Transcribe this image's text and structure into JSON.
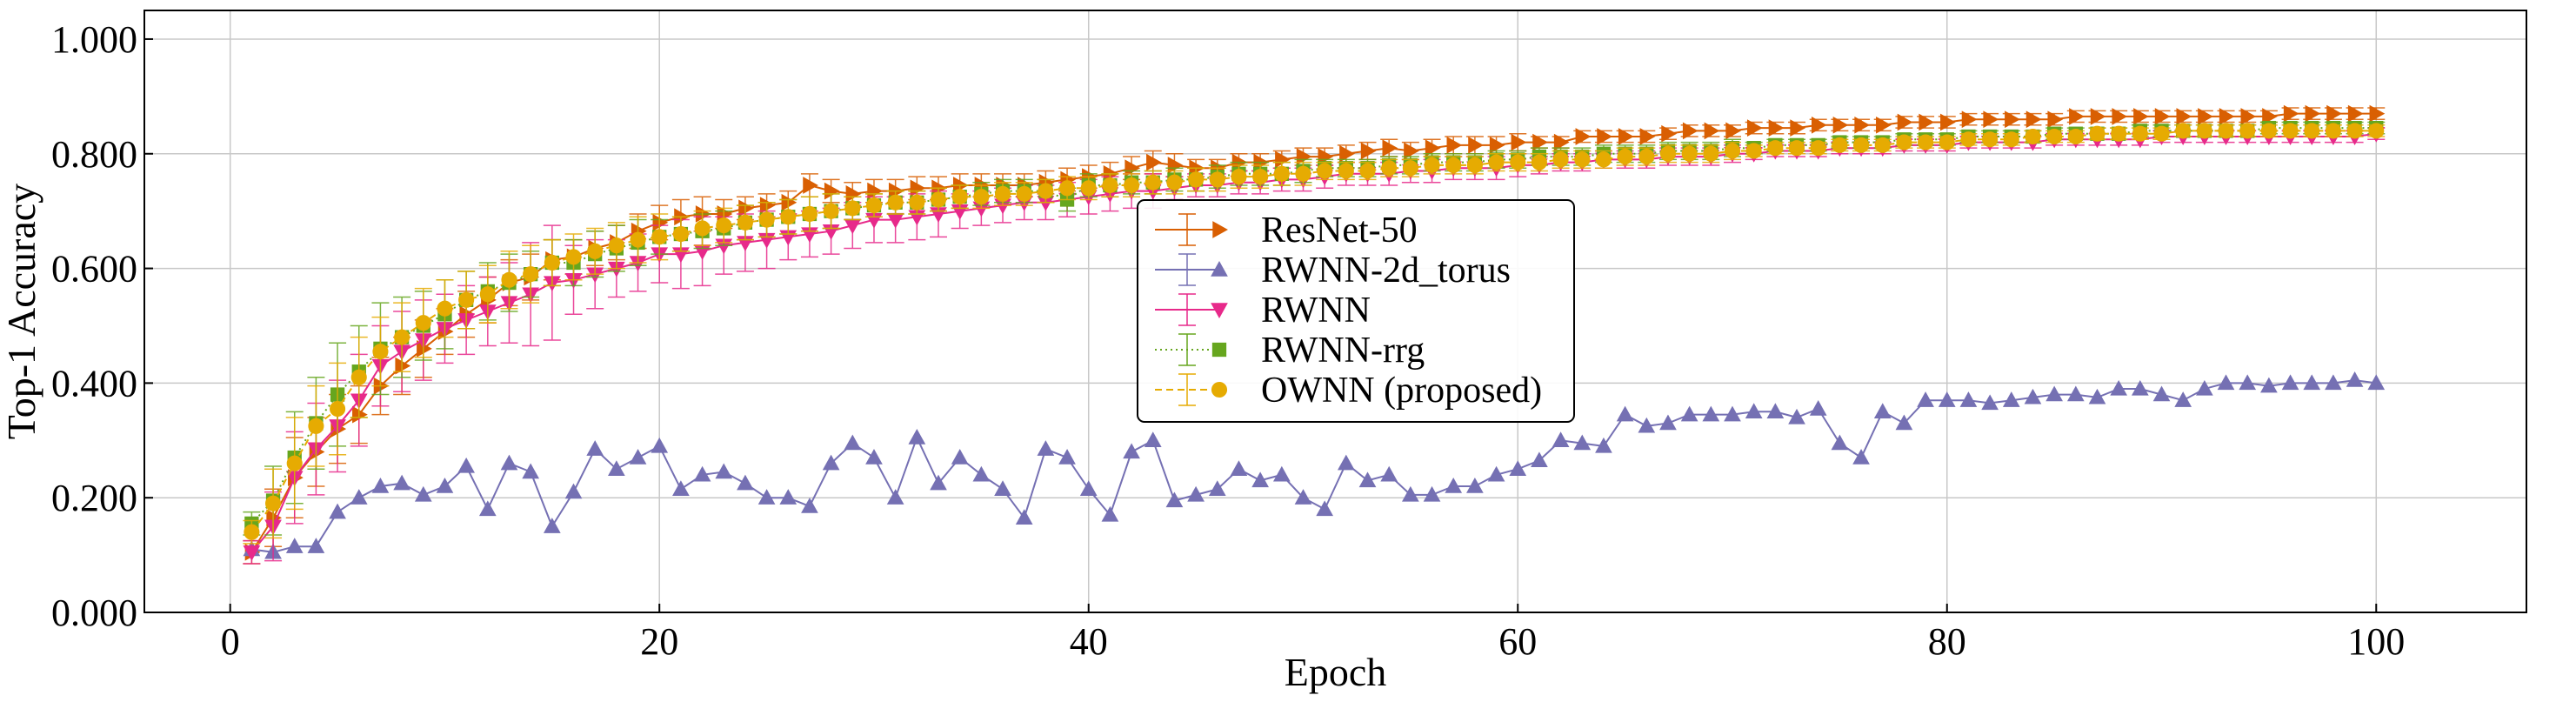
{
  "chart_data": {
    "type": "line",
    "xlabel": "Epoch",
    "ylabel": "Top-1 Accuracy",
    "xlim": [
      -4,
      107
    ],
    "ylim": [
      0,
      1.05
    ],
    "xticks": [
      0,
      20,
      40,
      60,
      80,
      100
    ],
    "xtick_labels": [
      "0",
      "20",
      "40",
      "60",
      "80",
      "100"
    ],
    "yticks": [
      0,
      0.2,
      0.4,
      0.6,
      0.8,
      1.0
    ],
    "ytick_labels": [
      "0.000",
      "0.200",
      "0.400",
      "0.600",
      "0.800",
      "1.000"
    ],
    "grid": true,
    "legend_position": "center",
    "x": [
      1,
      2,
      3,
      4,
      5,
      6,
      7,
      8,
      9,
      10,
      11,
      12,
      13,
      14,
      15,
      16,
      17,
      18,
      19,
      20,
      21,
      22,
      23,
      24,
      25,
      26,
      27,
      28,
      29,
      30,
      31,
      32,
      33,
      34,
      35,
      36,
      37,
      38,
      39,
      40,
      41,
      42,
      43,
      44,
      45,
      46,
      47,
      48,
      49,
      50,
      51,
      52,
      53,
      54,
      55,
      56,
      57,
      58,
      59,
      60,
      61,
      62,
      63,
      64,
      65,
      66,
      67,
      68,
      69,
      70,
      71,
      72,
      73,
      74,
      75,
      76,
      77,
      78,
      79,
      80,
      81,
      82,
      83,
      84,
      85,
      86,
      87,
      88,
      89,
      90,
      91,
      92,
      93,
      94,
      95,
      96,
      97,
      98,
      99,
      100
    ],
    "series": [
      {
        "name": "ResNet-50",
        "color": "#d95f02",
        "marker": "triangle-right",
        "line": "solid",
        "values": [
          0.105,
          0.165,
          0.235,
          0.28,
          0.32,
          0.345,
          0.395,
          0.43,
          0.46,
          0.49,
          0.52,
          0.545,
          0.575,
          0.585,
          0.615,
          0.62,
          0.635,
          0.645,
          0.665,
          0.68,
          0.69,
          0.695,
          0.695,
          0.705,
          0.71,
          0.715,
          0.745,
          0.735,
          0.73,
          0.735,
          0.735,
          0.74,
          0.74,
          0.745,
          0.745,
          0.745,
          0.745,
          0.75,
          0.755,
          0.76,
          0.765,
          0.775,
          0.785,
          0.78,
          0.775,
          0.775,
          0.785,
          0.785,
          0.79,
          0.795,
          0.795,
          0.8,
          0.805,
          0.81,
          0.805,
          0.81,
          0.815,
          0.815,
          0.815,
          0.82,
          0.82,
          0.82,
          0.83,
          0.83,
          0.83,
          0.83,
          0.835,
          0.84,
          0.84,
          0.84,
          0.845,
          0.845,
          0.845,
          0.85,
          0.85,
          0.85,
          0.85,
          0.855,
          0.855,
          0.855,
          0.86,
          0.86,
          0.86,
          0.86,
          0.86,
          0.865,
          0.865,
          0.865,
          0.865,
          0.865,
          0.865,
          0.865,
          0.865,
          0.865,
          0.865,
          0.87,
          0.87,
          0.87,
          0.87,
          0.87
        ],
        "errors": [
          0.02,
          0.05,
          0.07,
          0.06,
          0.06,
          0.05,
          0.05,
          0.05,
          0.05,
          0.04,
          0.04,
          0.04,
          0.04,
          0.04,
          0.035,
          0.03,
          0.03,
          0.03,
          0.03,
          0.03,
          0.03,
          0.03,
          0.025,
          0.02,
          0.02,
          0.02,
          0.02,
          0.02,
          0.02,
          0.02,
          0.02,
          0.02,
          0.02,
          0.02,
          0.02,
          0.02,
          0.02,
          0.02,
          0.02,
          0.02,
          0.02,
          0.02,
          0.02,
          0.02,
          0.015,
          0.015,
          0.015,
          0.015,
          0.015,
          0.015,
          0.015,
          0.015,
          0.015,
          0.015,
          0.015,
          0.015,
          0.015,
          0.015,
          0.015,
          0.015,
          0.01,
          0.01,
          0.01,
          0.01,
          0.01,
          0.01,
          0.01,
          0.01,
          0.01,
          0.01,
          0.01,
          0.01,
          0.01,
          0.01,
          0.01,
          0.01,
          0.01,
          0.01,
          0.01,
          0.01,
          0.01,
          0.01,
          0.01,
          0.01,
          0.01,
          0.01,
          0.01,
          0.01,
          0.01,
          0.01,
          0.01,
          0.01,
          0.01,
          0.01,
          0.01,
          0.01,
          0.01,
          0.01,
          0.01,
          0.01
        ]
      },
      {
        "name": "RWNN-2d_torus",
        "color": "#7570b3",
        "marker": "triangle-up",
        "line": "solid",
        "values": [
          0.11,
          0.105,
          0.115,
          0.115,
          0.175,
          0.2,
          0.22,
          0.225,
          0.205,
          0.22,
          0.255,
          0.18,
          0.26,
          0.245,
          0.15,
          0.21,
          0.285,
          0.25,
          0.27,
          0.29,
          0.215,
          0.24,
          0.245,
          0.225,
          0.2,
          0.2,
          0.185,
          0.26,
          0.295,
          0.27,
          0.2,
          0.305,
          0.225,
          0.27,
          0.24,
          0.215,
          0.165,
          0.285,
          0.27,
          0.215,
          0.17,
          0.28,
          0.3,
          0.195,
          0.205,
          0.215,
          0.25,
          0.23,
          0.24,
          0.2,
          0.18,
          0.26,
          0.23,
          0.24,
          0.205,
          0.205,
          0.22,
          0.22,
          0.24,
          0.25,
          0.265,
          0.3,
          0.295,
          0.29,
          0.345,
          0.325,
          0.33,
          0.345,
          0.345,
          0.345,
          0.35,
          0.35,
          0.34,
          0.355,
          0.295,
          0.27,
          0.35,
          0.33,
          0.37,
          0.37,
          0.37,
          0.365,
          0.37,
          0.375,
          0.38,
          0.38,
          0.375,
          0.39,
          0.39,
          0.38,
          0.37,
          0.39,
          0.4,
          0.4,
          0.395,
          0.4,
          0.4,
          0.4,
          0.405,
          0.4
        ],
        "errors": [
          0.005,
          0.005,
          0.005,
          0.005,
          0.005,
          0.005,
          0.005,
          0.005,
          0.005,
          0.005,
          0.005,
          0.005,
          0.005,
          0.005,
          0.005,
          0.005,
          0.005,
          0.005,
          0.005,
          0.005,
          0.005,
          0.005,
          0.005,
          0.005,
          0.005,
          0.005,
          0.005,
          0.005,
          0.005,
          0.005,
          0.005,
          0.005,
          0.005,
          0.005,
          0.005,
          0.005,
          0.005,
          0.005,
          0.005,
          0.005,
          0.005,
          0.005,
          0.005,
          0.005,
          0.005,
          0.005,
          0.005,
          0.005,
          0.005,
          0.005,
          0.005,
          0.005,
          0.005,
          0.005,
          0.005,
          0.005,
          0.005,
          0.005,
          0.005,
          0.005,
          0.005,
          0.005,
          0.005,
          0.005,
          0.005,
          0.005,
          0.005,
          0.005,
          0.005,
          0.005,
          0.005,
          0.005,
          0.005,
          0.005,
          0.005,
          0.005,
          0.005,
          0.005,
          0.005,
          0.005,
          0.005,
          0.005,
          0.005,
          0.005,
          0.005,
          0.005,
          0.005,
          0.005,
          0.005,
          0.005,
          0.005,
          0.005,
          0.005,
          0.005,
          0.005,
          0.005,
          0.005,
          0.005,
          0.005,
          0.005
        ]
      },
      {
        "name": "RWNN",
        "color": "#e7298a",
        "marker": "triangle-down",
        "line": "solid",
        "values": [
          0.105,
          0.15,
          0.235,
          0.285,
          0.325,
          0.37,
          0.43,
          0.455,
          0.475,
          0.495,
          0.51,
          0.525,
          0.54,
          0.555,
          0.575,
          0.58,
          0.59,
          0.6,
          0.61,
          0.625,
          0.625,
          0.63,
          0.64,
          0.645,
          0.65,
          0.655,
          0.66,
          0.665,
          0.675,
          0.685,
          0.685,
          0.69,
          0.695,
          0.7,
          0.705,
          0.71,
          0.715,
          0.715,
          0.72,
          0.725,
          0.73,
          0.735,
          0.735,
          0.74,
          0.745,
          0.745,
          0.75,
          0.75,
          0.755,
          0.755,
          0.76,
          0.765,
          0.765,
          0.765,
          0.77,
          0.77,
          0.775,
          0.775,
          0.775,
          0.78,
          0.78,
          0.785,
          0.785,
          0.79,
          0.79,
          0.79,
          0.795,
          0.795,
          0.795,
          0.8,
          0.8,
          0.805,
          0.805,
          0.805,
          0.81,
          0.81,
          0.81,
          0.815,
          0.815,
          0.815,
          0.82,
          0.82,
          0.82,
          0.82,
          0.825,
          0.825,
          0.825,
          0.825,
          0.825,
          0.83,
          0.83,
          0.83,
          0.83,
          0.83,
          0.83,
          0.83,
          0.83,
          0.83,
          0.83,
          0.835
        ],
        "errors": [
          0.02,
          0.06,
          0.08,
          0.08,
          0.08,
          0.08,
          0.07,
          0.07,
          0.07,
          0.06,
          0.06,
          0.06,
          0.07,
          0.09,
          0.1,
          0.06,
          0.06,
          0.05,
          0.05,
          0.05,
          0.06,
          0.06,
          0.05,
          0.05,
          0.05,
          0.04,
          0.04,
          0.04,
          0.04,
          0.04,
          0.04,
          0.04,
          0.04,
          0.03,
          0.03,
          0.03,
          0.03,
          0.03,
          0.03,
          0.03,
          0.03,
          0.03,
          0.03,
          0.02,
          0.02,
          0.02,
          0.02,
          0.02,
          0.02,
          0.02,
          0.02,
          0.02,
          0.02,
          0.02,
          0.02,
          0.02,
          0.02,
          0.02,
          0.02,
          0.02,
          0.015,
          0.015,
          0.015,
          0.015,
          0.015,
          0.015,
          0.015,
          0.015,
          0.015,
          0.015,
          0.01,
          0.01,
          0.01,
          0.01,
          0.01,
          0.01,
          0.01,
          0.01,
          0.01,
          0.01,
          0.01,
          0.01,
          0.01,
          0.01,
          0.01,
          0.01,
          0.01,
          0.01,
          0.01,
          0.01,
          0.01,
          0.01,
          0.01,
          0.01,
          0.01,
          0.01,
          0.01,
          0.01,
          0.01,
          0.01
        ]
      },
      {
        "name": "RWNN-rrg",
        "color": "#66a61e",
        "marker": "square",
        "line": "dotted",
        "values": [
          0.155,
          0.195,
          0.27,
          0.33,
          0.38,
          0.42,
          0.46,
          0.48,
          0.5,
          0.52,
          0.545,
          0.56,
          0.575,
          0.59,
          0.61,
          0.61,
          0.625,
          0.635,
          0.645,
          0.655,
          0.66,
          0.665,
          0.67,
          0.68,
          0.685,
          0.69,
          0.695,
          0.7,
          0.705,
          0.71,
          0.715,
          0.715,
          0.72,
          0.725,
          0.73,
          0.735,
          0.735,
          0.735,
          0.72,
          0.745,
          0.745,
          0.75,
          0.75,
          0.755,
          0.755,
          0.76,
          0.765,
          0.765,
          0.765,
          0.77,
          0.775,
          0.775,
          0.775,
          0.78,
          0.78,
          0.785,
          0.785,
          0.785,
          0.79,
          0.79,
          0.795,
          0.795,
          0.795,
          0.8,
          0.8,
          0.8,
          0.805,
          0.805,
          0.805,
          0.81,
          0.81,
          0.815,
          0.815,
          0.815,
          0.82,
          0.82,
          0.82,
          0.825,
          0.825,
          0.825,
          0.83,
          0.83,
          0.83,
          0.83,
          0.835,
          0.835,
          0.835,
          0.835,
          0.84,
          0.84,
          0.84,
          0.84,
          0.84,
          0.84,
          0.845,
          0.845,
          0.845,
          0.845,
          0.845,
          0.845
        ],
        "errors": [
          0.02,
          0.06,
          0.08,
          0.08,
          0.09,
          0.08,
          0.08,
          0.07,
          0.06,
          0.06,
          0.05,
          0.05,
          0.05,
          0.04,
          0.04,
          0.04,
          0.04,
          0.04,
          0.04,
          0.03,
          0.03,
          0.03,
          0.03,
          0.03,
          0.03,
          0.03,
          0.03,
          0.03,
          0.02,
          0.02,
          0.02,
          0.02,
          0.02,
          0.02,
          0.02,
          0.02,
          0.02,
          0.02,
          0.02,
          0.02,
          0.02,
          0.02,
          0.02,
          0.02,
          0.02,
          0.02,
          0.02,
          0.02,
          0.02,
          0.02,
          0.015,
          0.015,
          0.015,
          0.015,
          0.015,
          0.015,
          0.015,
          0.015,
          0.015,
          0.015,
          0.015,
          0.015,
          0.015,
          0.015,
          0.015,
          0.015,
          0.015,
          0.015,
          0.015,
          0.015,
          0.01,
          0.01,
          0.01,
          0.01,
          0.01,
          0.01,
          0.01,
          0.01,
          0.01,
          0.01,
          0.01,
          0.01,
          0.01,
          0.01,
          0.01,
          0.01,
          0.01,
          0.01,
          0.01,
          0.01,
          0.01,
          0.01,
          0.01,
          0.01,
          0.01,
          0.01,
          0.01,
          0.01,
          0.01,
          0.01
        ]
      },
      {
        "name": "OWNN (proposed)",
        "color": "#e6ab02",
        "marker": "circle",
        "line": "dashed",
        "values": [
          0.14,
          0.19,
          0.26,
          0.325,
          0.355,
          0.41,
          0.455,
          0.48,
          0.505,
          0.53,
          0.545,
          0.555,
          0.58,
          0.59,
          0.61,
          0.62,
          0.63,
          0.64,
          0.65,
          0.655,
          0.66,
          0.67,
          0.675,
          0.68,
          0.685,
          0.69,
          0.695,
          0.7,
          0.705,
          0.71,
          0.715,
          0.715,
          0.72,
          0.725,
          0.725,
          0.73,
          0.73,
          0.735,
          0.74,
          0.74,
          0.745,
          0.745,
          0.75,
          0.75,
          0.755,
          0.755,
          0.76,
          0.76,
          0.765,
          0.765,
          0.77,
          0.77,
          0.77,
          0.775,
          0.775,
          0.78,
          0.78,
          0.78,
          0.785,
          0.785,
          0.785,
          0.79,
          0.79,
          0.79,
          0.795,
          0.795,
          0.8,
          0.8,
          0.8,
          0.805,
          0.805,
          0.81,
          0.81,
          0.81,
          0.815,
          0.815,
          0.815,
          0.82,
          0.82,
          0.82,
          0.825,
          0.825,
          0.825,
          0.83,
          0.83,
          0.83,
          0.835,
          0.835,
          0.835,
          0.835,
          0.84,
          0.84,
          0.84,
          0.84,
          0.84,
          0.84,
          0.84,
          0.84,
          0.84,
          0.84
        ],
        "errors": [
          0.02,
          0.06,
          0.08,
          0.07,
          0.08,
          0.07,
          0.06,
          0.06,
          0.06,
          0.05,
          0.05,
          0.05,
          0.05,
          0.05,
          0.04,
          0.04,
          0.04,
          0.04,
          0.04,
          0.04,
          0.03,
          0.03,
          0.03,
          0.03,
          0.03,
          0.03,
          0.03,
          0.03,
          0.02,
          0.02,
          0.02,
          0.02,
          0.02,
          0.02,
          0.02,
          0.02,
          0.02,
          0.02,
          0.02,
          0.02,
          0.02,
          0.02,
          0.02,
          0.02,
          0.02,
          0.02,
          0.02,
          0.02,
          0.02,
          0.02,
          0.015,
          0.015,
          0.015,
          0.015,
          0.015,
          0.015,
          0.015,
          0.015,
          0.015,
          0.015,
          0.015,
          0.015,
          0.015,
          0.015,
          0.015,
          0.015,
          0.015,
          0.015,
          0.015,
          0.015,
          0.01,
          0.01,
          0.01,
          0.01,
          0.01,
          0.01,
          0.01,
          0.01,
          0.01,
          0.01,
          0.01,
          0.01,
          0.01,
          0.01,
          0.01,
          0.01,
          0.01,
          0.01,
          0.01,
          0.01,
          0.01,
          0.01,
          0.01,
          0.01,
          0.01,
          0.01,
          0.01,
          0.01,
          0.01,
          0.01
        ]
      }
    ]
  }
}
